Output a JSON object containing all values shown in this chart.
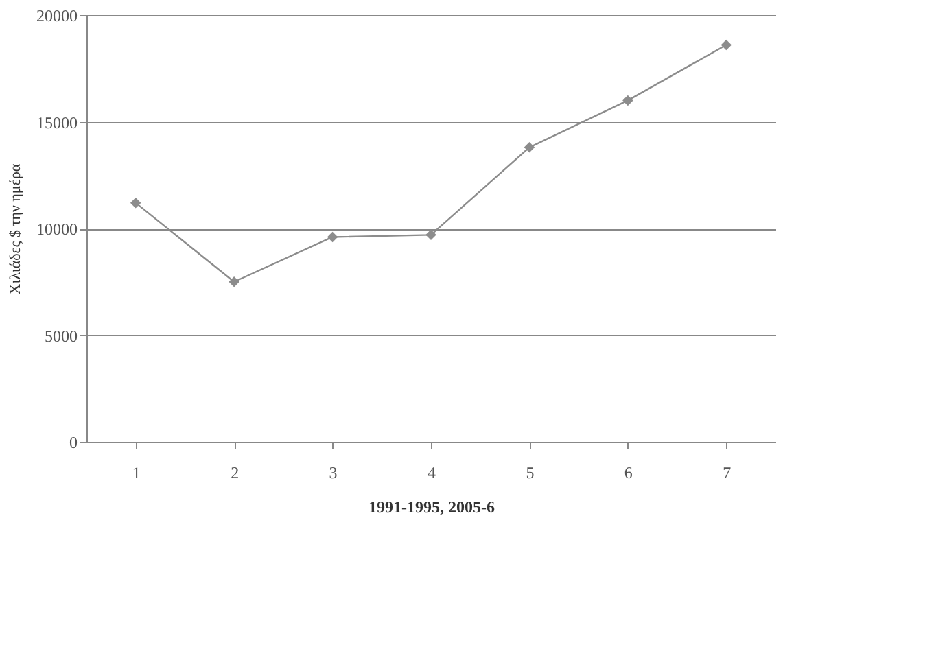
{
  "chart_data": {
    "type": "line",
    "xlabel": "1991-1995, 2005-6",
    "ylabel": "Χιλιάδες $ την ημέρα",
    "categories": [
      "1",
      "2",
      "3",
      "4",
      "5",
      "6",
      "7"
    ],
    "series": [
      {
        "color": "#8c8c8c",
        "values": [
          11200,
          7500,
          9600,
          9700,
          13800,
          16000,
          18600
        ]
      }
    ],
    "ylim": [
      0,
      20000
    ],
    "yticks": [
      0,
      5000,
      10000,
      15000,
      20000
    ],
    "grid": "y",
    "marker": "diamond",
    "line_style": "solid"
  }
}
